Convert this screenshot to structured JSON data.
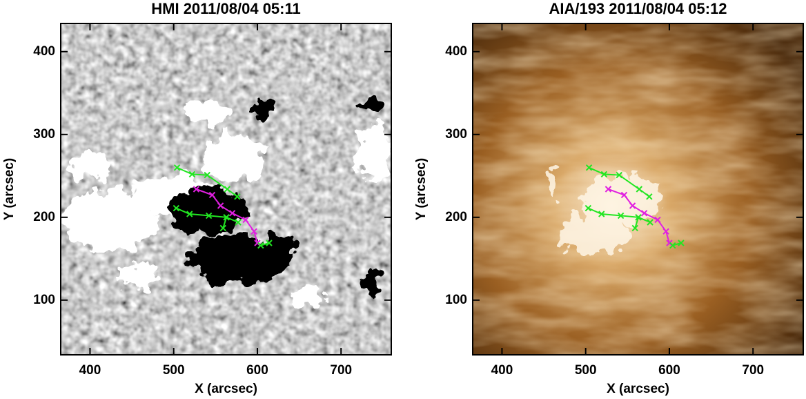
{
  "chart_data": [
    {
      "type": "line",
      "title": "HMI 2011/08/04 05:11",
      "x_label": "X (arcsec)",
      "y_label": "Y (arcsec)",
      "xlim": [
        365,
        760
      ],
      "ylim": [
        34,
        434
      ],
      "xticks": [
        400,
        500,
        600,
        700
      ],
      "yticks": [
        100,
        200,
        300,
        400
      ],
      "series": [
        {
          "color": "#22e622",
          "x": [
            504,
            522,
            540,
            564,
            576
          ],
          "values": [
            260,
            252,
            251,
            234,
            225
          ]
        },
        {
          "color": "#e020e0",
          "x": [
            527,
            546,
            556,
            570,
            586,
            596,
            600
          ],
          "values": [
            234,
            227,
            214,
            205,
            197,
            183,
            169
          ]
        },
        {
          "color": "#22e622",
          "x": [
            503,
            519,
            542,
            563,
            577
          ],
          "values": [
            211,
            204,
            202,
            200,
            194
          ]
        },
        {
          "color": "#22e622",
          "x": [
            563,
            559
          ],
          "values": [
            200,
            187
          ]
        },
        {
          "color": "#22e622",
          "x": [
            604,
            614
          ],
          "values": [
            166,
            169
          ]
        }
      ]
    },
    {
      "type": "line",
      "title": "AIA/193 2011/08/04 05:12",
      "x_label": "X (arcsec)",
      "y_label": "Y (arcsec)",
      "xlim": [
        365,
        760
      ],
      "ylim": [
        34,
        434
      ],
      "xticks": [
        400,
        500,
        600,
        700
      ],
      "yticks": [
        100,
        200,
        300,
        400
      ],
      "series": [
        {
          "color": "#22e622",
          "x": [
            504,
            522,
            540,
            564,
            576
          ],
          "values": [
            260,
            252,
            251,
            234,
            225
          ]
        },
        {
          "color": "#e020e0",
          "x": [
            527,
            546,
            556,
            570,
            586,
            596,
            600
          ],
          "values": [
            234,
            227,
            214,
            205,
            197,
            183,
            169
          ]
        },
        {
          "color": "#22e622",
          "x": [
            503,
            519,
            542,
            563,
            577
          ],
          "values": [
            211,
            204,
            202,
            200,
            194
          ]
        },
        {
          "color": "#22e622",
          "x": [
            563,
            559
          ],
          "values": [
            200,
            187
          ]
        },
        {
          "color": "#22e622",
          "x": [
            604,
            614
          ],
          "values": [
            166,
            169
          ]
        }
      ]
    }
  ]
}
